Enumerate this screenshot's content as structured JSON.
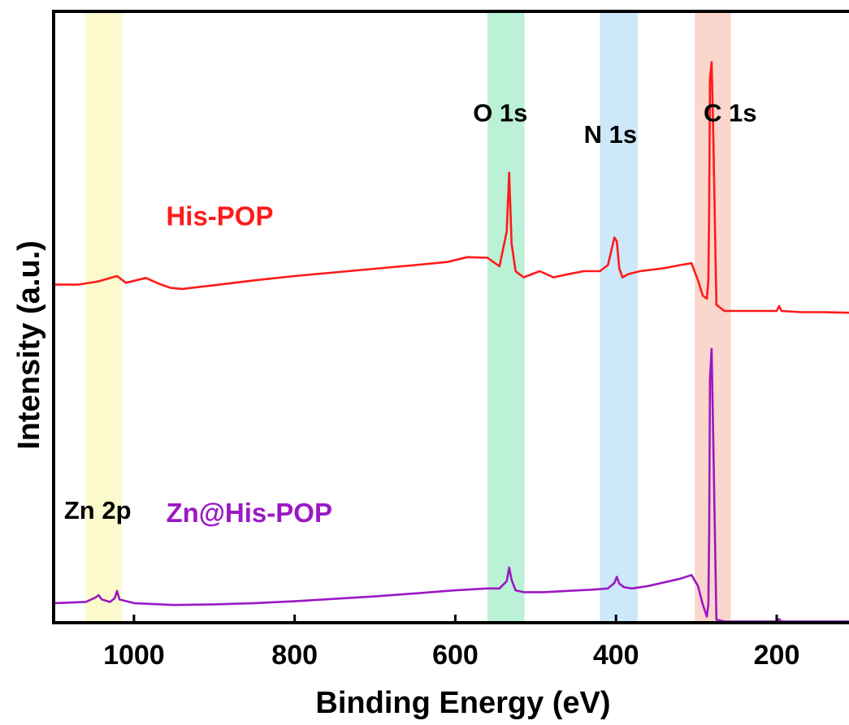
{
  "chart_data": {
    "type": "line",
    "xlabel": "Binding Energy (eV)",
    "ylabel": "Intensity (a.u.)",
    "xlim": [
      1100,
      110
    ],
    "x_reversed": true,
    "ylim": [
      0,
      100
    ],
    "x_ticks": [
      1000,
      800,
      600,
      400,
      200
    ],
    "grid": false,
    "legend": "none",
    "regions": [
      {
        "label": "Zn 2p",
        "x_from": 1060,
        "x_to": 1015,
        "color": "#fafac8"
      },
      {
        "label": "O 1s",
        "x_from": 560,
        "x_to": 514,
        "color": "#b4f0d2"
      },
      {
        "label": "N 1s",
        "x_from": 420,
        "x_to": 373,
        "color": "#c8e6f8"
      },
      {
        "label": "C 1s",
        "x_from": 302,
        "x_to": 257,
        "color": "#fad2c8"
      }
    ],
    "series": [
      {
        "name": "His-POP",
        "color": "#ff1a1a",
        "x": [
          1100,
          1070,
          1045,
          1021,
          1010,
          985,
          970,
          955,
          940,
          900,
          850,
          800,
          750,
          700,
          650,
          610,
          585,
          560,
          545,
          536,
          533,
          530,
          525,
          515,
          495,
          478,
          460,
          440,
          420,
          410,
          402,
          399,
          396,
          392,
          385,
          370,
          340,
          320,
          306,
          298,
          292,
          287,
          285,
          284,
          283,
          281,
          279,
          275,
          265,
          240,
          200,
          197,
          194,
          170,
          140,
          110
        ],
        "y": [
          55.3,
          55.3,
          55.8,
          56.7,
          55.6,
          56.4,
          55.5,
          54.8,
          54.6,
          55.2,
          56.0,
          56.7,
          57.3,
          57.9,
          58.5,
          59.0,
          59.8,
          59.7,
          58.3,
          64.0,
          73.6,
          62.0,
          57.5,
          56.5,
          57.5,
          56.5,
          57.0,
          57.5,
          57.5,
          58.5,
          63.0,
          62.4,
          58.0,
          56.5,
          57.0,
          57.5,
          58.0,
          58.5,
          58.8,
          56.0,
          53.5,
          53.0,
          56.0,
          68.0,
          89.0,
          91.7,
          80.0,
          52.0,
          51.0,
          51.0,
          51.0,
          51.8,
          51.0,
          50.8,
          50.8,
          50.7
        ]
      },
      {
        "name": "Zn@His-POP",
        "color": "#9b18c4",
        "x": [
          1100,
          1060,
          1048,
          1044,
          1040,
          1030,
          1024,
          1021,
          1018,
          1000,
          950,
          900,
          850,
          800,
          750,
          700,
          650,
          600,
          560,
          545,
          536,
          533,
          530,
          525,
          515,
          490,
          460,
          430,
          410,
          402,
          399,
          396,
          390,
          380,
          360,
          340,
          320,
          306,
          298,
          292,
          287,
          285,
          284,
          283,
          281,
          279,
          275,
          265,
          240,
          200,
          197,
          194,
          170,
          110
        ],
        "y": [
          3.2,
          3.4,
          4.1,
          4.5,
          3.8,
          3.4,
          4.0,
          5.2,
          3.8,
          3.2,
          2.9,
          3.0,
          3.2,
          3.5,
          3.9,
          4.3,
          4.8,
          5.3,
          5.6,
          5.6,
          6.8,
          9.0,
          7.0,
          5.3,
          5.0,
          5.0,
          5.2,
          5.4,
          5.6,
          6.5,
          7.5,
          6.4,
          5.8,
          5.6,
          6.0,
          6.6,
          7.2,
          7.8,
          6.0,
          3.0,
          1.0,
          3.0,
          15.0,
          40.0,
          44.8,
          30.0,
          0.5,
          0.2,
          0.2,
          0.2,
          0.6,
          0.2,
          0.2,
          0.2
        ]
      }
    ],
    "annotations": {
      "peaks": [
        {
          "text": "Zn 2p",
          "x": 1087,
          "y": 17.0
        },
        {
          "text": "O 1s",
          "x": 578,
          "y": 82.0
        },
        {
          "text": "N 1s",
          "x": 440,
          "y": 78.5
        },
        {
          "text": "C 1s",
          "x": 291,
          "y": 82.0
        }
      ],
      "series_labels": [
        {
          "text": "His-POP",
          "series": 0,
          "x": 960,
          "y": 65.0
        },
        {
          "text": "Zn@His-POP",
          "series": 1,
          "x": 960,
          "y": 16.5
        }
      ]
    }
  }
}
